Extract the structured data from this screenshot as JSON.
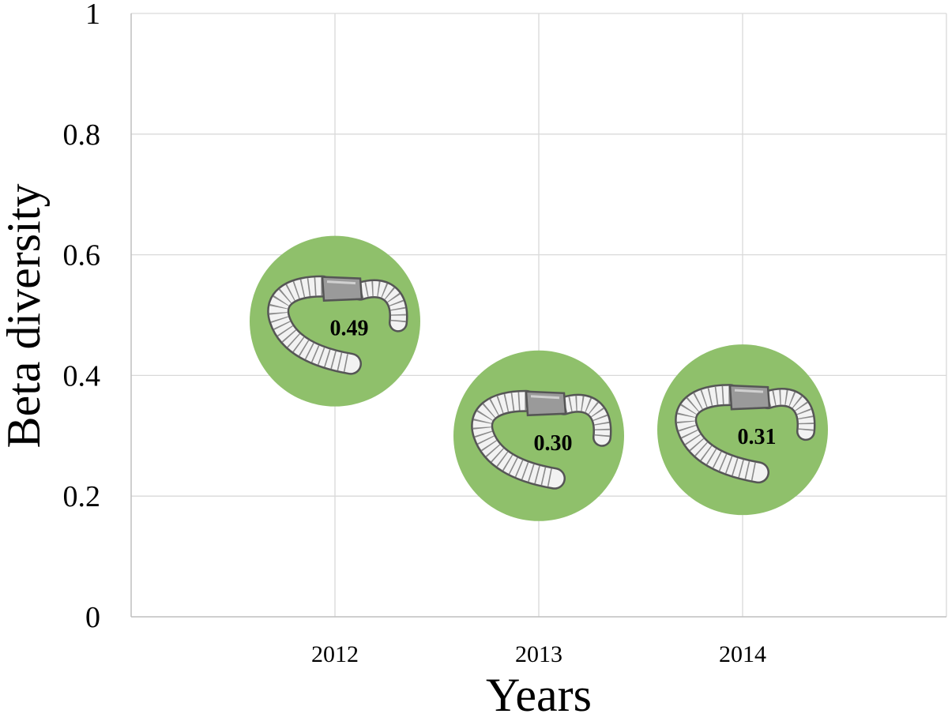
{
  "chart_data": {
    "type": "scatter",
    "title": "",
    "xlabel": "Years",
    "ylabel": "Beta diversity",
    "categories": [
      "2012",
      "2013",
      "2014"
    ],
    "values": [
      0.49,
      0.3,
      0.31
    ],
    "data_labels": [
      "0.49",
      "0.30",
      "0.31"
    ],
    "ylim": [
      0,
      1
    ],
    "yticks": [
      "0",
      "0.2",
      "0.4",
      "0.6",
      "0.8",
      "1"
    ],
    "grid": true,
    "legend": "none",
    "marker": "filled circle with earthworm illustration",
    "colors": {
      "marker_fill": "#8fc06b",
      "grid": "#d9d9d9",
      "axis": "#bfbfbf"
    }
  }
}
